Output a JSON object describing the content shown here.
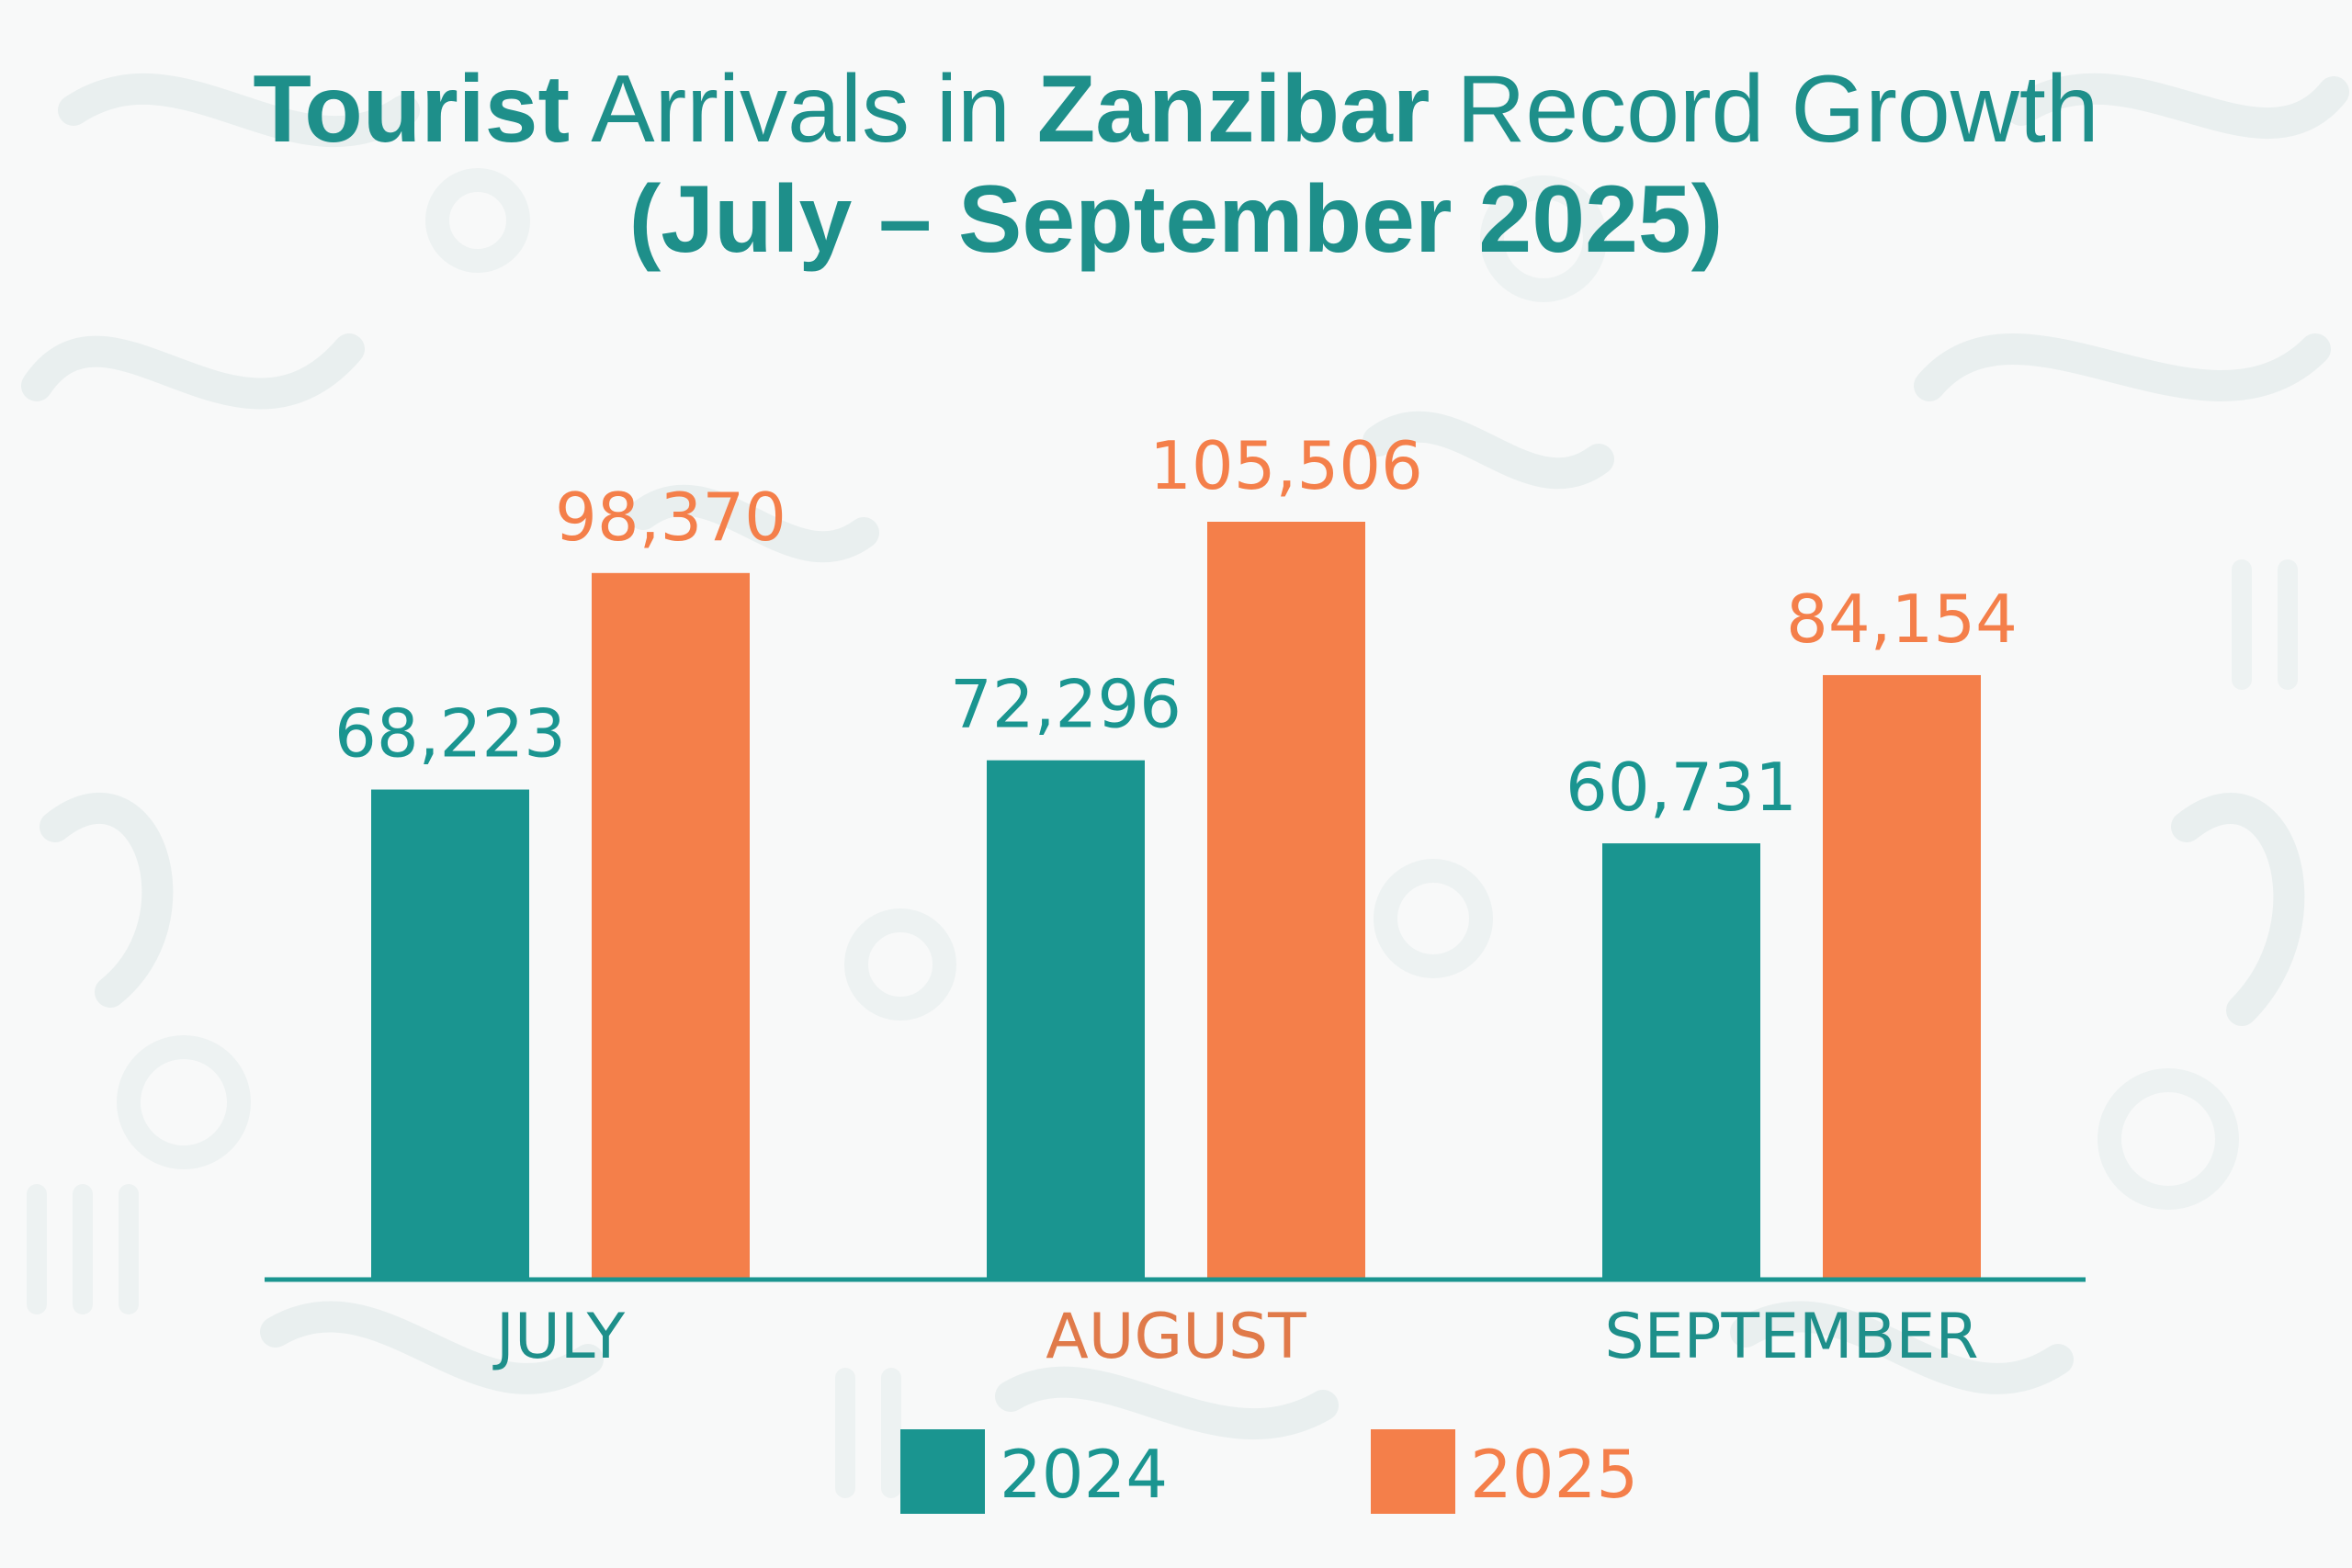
{
  "title": {
    "line1_bold_a": "Tourist",
    "line1_mid": " Arrivals in ",
    "line1_bold_b": "Zanzibar",
    "line1_end": " Record Growth",
    "line2": "(July – September 2025)"
  },
  "colors": {
    "teal": "#1a9590",
    "orange": "#f47f4a",
    "title": "#1e8f8a",
    "axis": "#1a9590"
  },
  "chart_data": {
    "type": "bar",
    "title": "Tourist Arrivals in Zanzibar Record Growth (July – September 2025)",
    "categories": [
      "JULY",
      "AUGUST",
      "SEPTEMBER"
    ],
    "category_label_colors": [
      "#1e8f8a",
      "#e07a4a",
      "#1e8f8a"
    ],
    "series": [
      {
        "name": "2024",
        "color": "#1a9590",
        "values": [
          68223,
          72296,
          60731
        ],
        "labels": [
          "68,223",
          "72,296",
          "60,731"
        ]
      },
      {
        "name": "2025",
        "color": "#f47f4a",
        "values": [
          98370,
          105506,
          84154
        ],
        "labels": [
          "98,370",
          "105,506",
          "84,154"
        ]
      }
    ],
    "ylim": [
      0,
      105506
    ],
    "grid": false,
    "legend": "bottom"
  }
}
